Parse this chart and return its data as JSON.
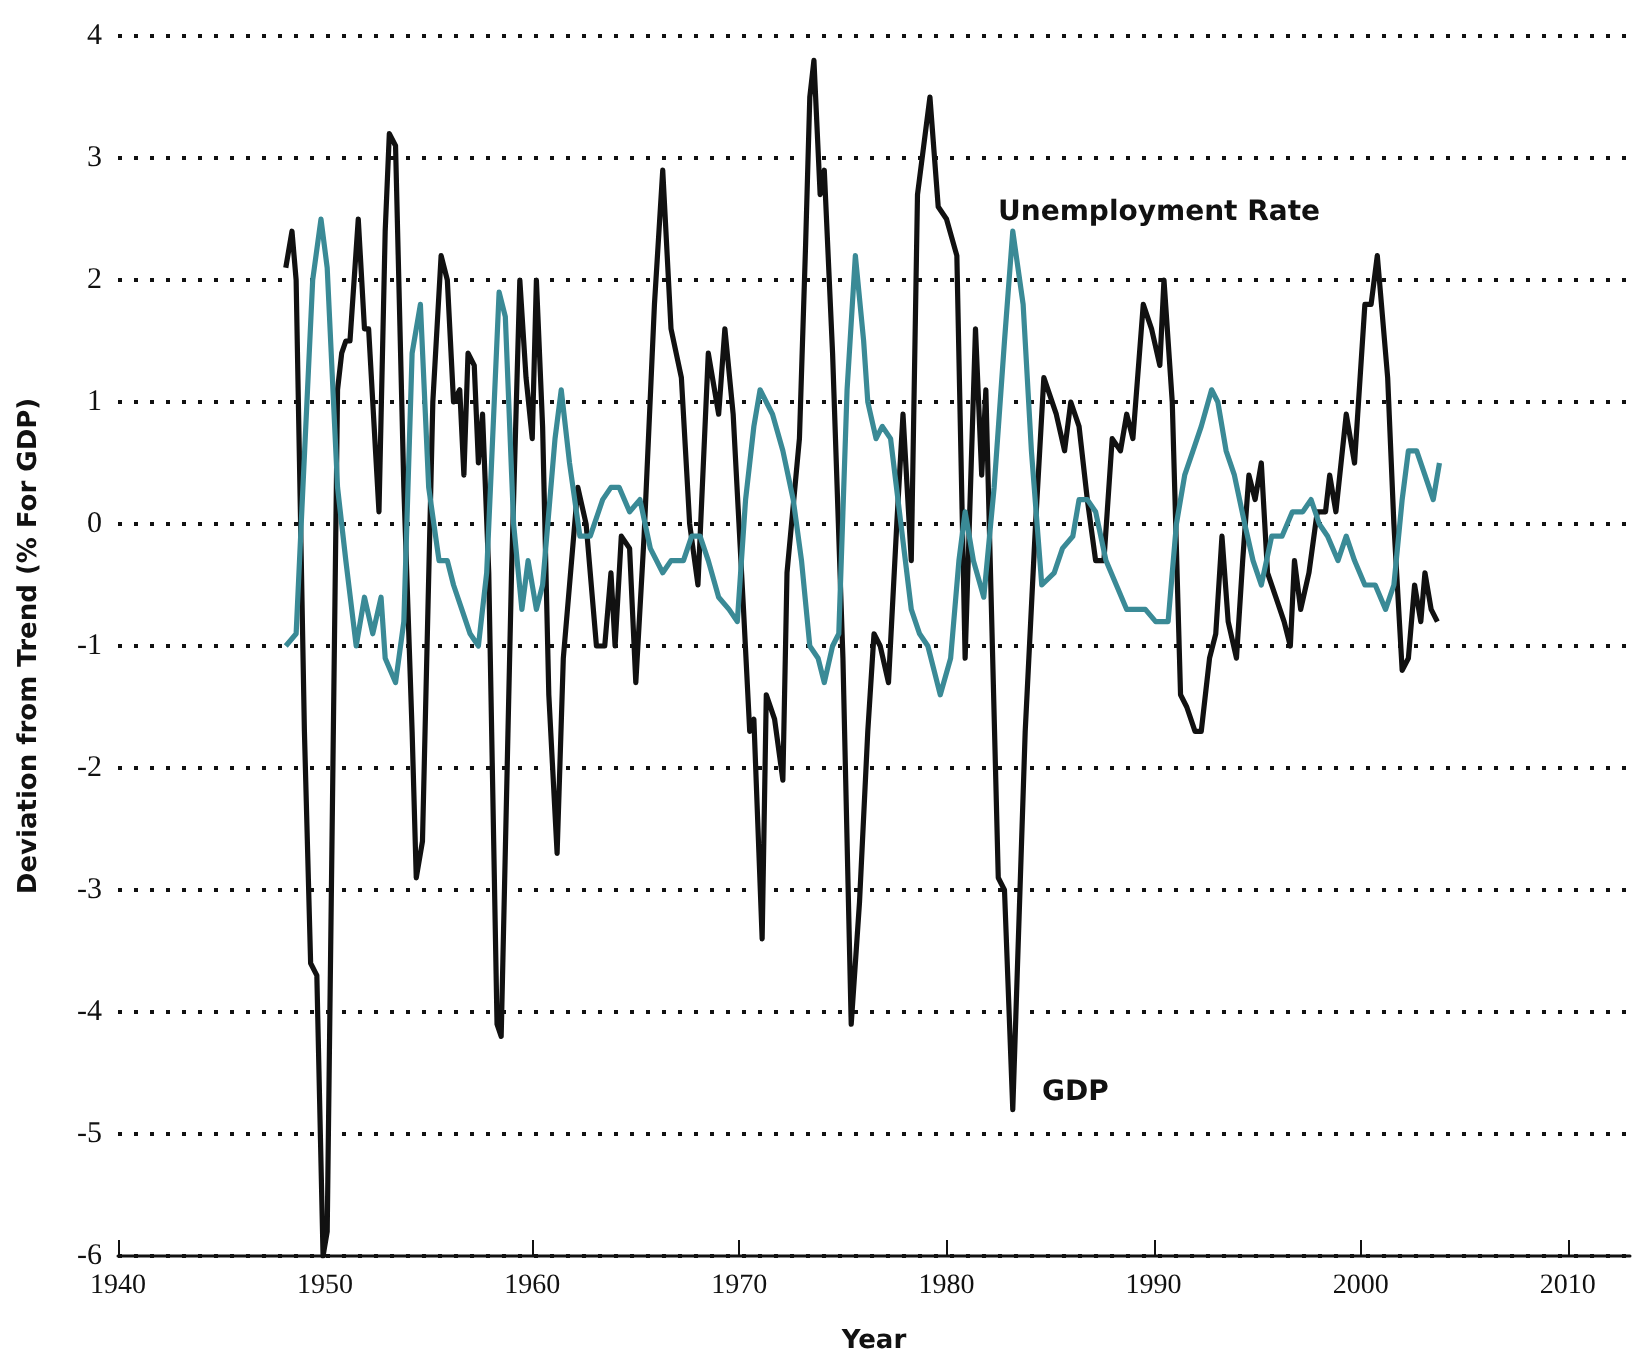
{
  "chart_data": {
    "type": "line",
    "xlabel": "Year",
    "ylabel": "Deviation from Trend (% For GDP)",
    "xlim": [
      1940,
      2013
    ],
    "xticks": [
      1940,
      1950,
      1960,
      1970,
      1980,
      1990,
      2000,
      2010
    ],
    "ylim": [
      -6,
      4
    ],
    "yticks": [
      -6,
      -5,
      -4,
      -3,
      -2,
      -1,
      0,
      1,
      2,
      3,
      4
    ],
    "grid": "y",
    "legend": false,
    "marker": "none",
    "line_style": "solid",
    "series": [
      {
        "name": "GDP",
        "color": "#111111",
        "x": [
          1948.1,
          1948.4,
          1948.6,
          1949.0,
          1949.3,
          1949.6,
          1949.9,
          1950.1,
          1950.6,
          1950.8,
          1951.0,
          1951.2,
          1951.6,
          1951.9,
          1952.1,
          1952.6,
          1952.9,
          1953.1,
          1953.4,
          1953.8,
          1954.2,
          1954.4,
          1954.7,
          1955.2,
          1955.6,
          1955.9,
          1956.2,
          1956.5,
          1956.7,
          1956.9,
          1957.2,
          1957.4,
          1957.6,
          1957.9,
          1958.3,
          1958.5,
          1959.0,
          1959.4,
          1959.7,
          1960.0,
          1960.2,
          1960.5,
          1960.8,
          1961.2,
          1961.5,
          1962.2,
          1962.6,
          1963.1,
          1963.5,
          1963.8,
          1964.0,
          1964.3,
          1964.7,
          1965.0,
          1965.4,
          1965.9,
          1966.3,
          1966.7,
          1967.2,
          1967.6,
          1968.0,
          1968.5,
          1969.0,
          1969.3,
          1969.7,
          1970.2,
          1970.5,
          1970.7,
          1971.1,
          1971.3,
          1971.7,
          1972.1,
          1972.3,
          1972.9,
          1973.2,
          1973.4,
          1973.6,
          1973.9,
          1974.1,
          1974.5,
          1975.0,
          1975.4,
          1975.8,
          1976.2,
          1976.5,
          1976.8,
          1977.2,
          1977.6,
          1977.9,
          1978.3,
          1978.6,
          1979.2,
          1979.6,
          1980.0,
          1980.5,
          1980.9,
          1981.4,
          1981.7,
          1981.9,
          1982.5,
          1982.8,
          1983.2,
          1983.8,
          1984.3,
          1984.7,
          1985.3,
          1985.7,
          1986.0,
          1986.4,
          1986.8,
          1987.2,
          1987.6,
          1988.0,
          1988.4,
          1988.7,
          1989.0,
          1989.5,
          1989.9,
          1990.3,
          1990.5,
          1990.9,
          1991.3,
          1991.6,
          1992.0,
          1992.3,
          1992.7,
          1993.0,
          1993.3,
          1993.6,
          1994.0,
          1994.3,
          1994.6,
          1994.9,
          1995.2,
          1995.5,
          1995.9,
          1996.3,
          1996.6,
          1996.8,
          1997.1,
          1997.5,
          1997.9,
          1998.3,
          1998.5,
          1998.8,
          1999.3,
          1999.7,
          2000.2,
          2000.5,
          2000.8,
          2001.0,
          2001.3,
          2001.6,
          2002.0,
          2002.3,
          2002.6,
          2002.9,
          2003.1,
          2003.4,
          2003.7
        ],
        "values": [
          2.1,
          2.4,
          2.0,
          -1.7,
          -3.6,
          -3.7,
          -6.0,
          -5.8,
          1.1,
          1.4,
          1.5,
          1.5,
          2.5,
          1.6,
          1.6,
          0.1,
          2.4,
          3.2,
          3.1,
          0.3,
          -1.7,
          -2.9,
          -2.6,
          1.0,
          2.2,
          2.0,
          1.0,
          1.1,
          0.4,
          1.4,
          1.3,
          0.5,
          0.9,
          -0.4,
          -4.1,
          -4.2,
          -0.4,
          2.0,
          1.2,
          0.7,
          2.0,
          0.8,
          -1.4,
          -2.7,
          -1.1,
          0.3,
          0.0,
          -1.0,
          -1.0,
          -0.4,
          -1.0,
          -0.1,
          -0.2,
          -1.3,
          -0.1,
          1.8,
          2.9,
          1.6,
          1.2,
          0.0,
          -0.5,
          1.4,
          0.9,
          1.6,
          0.9,
          -0.7,
          -1.7,
          -1.6,
          -3.4,
          -1.4,
          -1.6,
          -2.1,
          -0.4,
          0.7,
          2.3,
          3.5,
          3.8,
          2.7,
          2.9,
          1.4,
          -1.1,
          -4.1,
          -3.1,
          -1.7,
          -0.9,
          -1.0,
          -1.3,
          0.0,
          0.9,
          -0.3,
          2.7,
          3.5,
          2.6,
          2.5,
          2.2,
          -1.1,
          1.6,
          0.4,
          1.1,
          -2.9,
          -3.0,
          -4.8,
          -1.7,
          0.0,
          1.2,
          0.9,
          0.6,
          1.0,
          0.8,
          0.2,
          -0.3,
          -0.3,
          0.7,
          0.6,
          0.9,
          0.7,
          1.8,
          1.6,
          1.3,
          2.0,
          1.0,
          -1.4,
          -1.5,
          -1.7,
          -1.7,
          -1.1,
          -0.9,
          -0.1,
          -0.8,
          -1.1,
          -0.3,
          0.4,
          0.2,
          0.5,
          -0.4,
          -0.6,
          -0.8,
          -1.0,
          -0.3,
          -0.7,
          -0.4,
          0.1,
          0.1,
          0.4,
          0.1,
          0.9,
          0.5,
          1.8,
          1.8,
          2.2,
          1.8,
          1.2,
          0.0,
          -1.2,
          -1.1,
          -0.5,
          -0.8,
          -0.4,
          -0.7,
          -0.8
        ]
      },
      {
        "name": "Unemployment Rate",
        "color": "#3a8a96",
        "x": [
          1948.1,
          1948.6,
          1948.9,
          1949.4,
          1949.8,
          1950.1,
          1950.6,
          1951.0,
          1951.5,
          1951.9,
          1952.3,
          1952.7,
          1952.9,
          1953.4,
          1953.8,
          1954.2,
          1954.6,
          1955.0,
          1955.5,
          1955.9,
          1956.2,
          1956.6,
          1957.0,
          1957.4,
          1957.8,
          1958.4,
          1958.7,
          1959.1,
          1959.5,
          1959.8,
          1960.2,
          1960.5,
          1961.1,
          1961.4,
          1961.8,
          1962.3,
          1962.8,
          1963.4,
          1963.8,
          1964.2,
          1964.7,
          1965.2,
          1965.7,
          1966.3,
          1966.7,
          1967.3,
          1967.7,
          1968.1,
          1968.5,
          1969.0,
          1969.5,
          1969.9,
          1970.3,
          1970.7,
          1971.0,
          1971.3,
          1971.6,
          1972.1,
          1972.6,
          1973.0,
          1973.4,
          1973.8,
          1974.1,
          1974.5,
          1974.8,
          1975.2,
          1975.6,
          1976.0,
          1976.2,
          1976.6,
          1976.9,
          1977.3,
          1977.8,
          1978.3,
          1978.7,
          1979.1,
          1979.4,
          1979.7,
          1980.2,
          1980.6,
          1980.9,
          1981.3,
          1981.8,
          1982.3,
          1982.8,
          1983.2,
          1983.7,
          1984.1,
          1984.6,
          1985.2,
          1985.6,
          1986.1,
          1986.4,
          1986.8,
          1987.2,
          1987.7,
          1988.2,
          1988.7,
          1989.2,
          1989.6,
          1990.1,
          1990.7,
          1991.1,
          1991.5,
          1991.9,
          1992.3,
          1992.8,
          1993.1,
          1993.5,
          1993.9,
          1994.4,
          1994.8,
          1995.2,
          1995.7,
          1996.2,
          1996.7,
          1997.2,
          1997.6,
          1998.0,
          1998.4,
          1998.9,
          1999.3,
          1999.7,
          2000.2,
          2000.7,
          2001.2,
          2001.6,
          2002.0,
          2002.3,
          2002.7,
          2003.1,
          2003.5,
          2003.8
        ],
        "values": [
          -1.0,
          -0.9,
          0.2,
          2.0,
          2.5,
          2.1,
          0.3,
          -0.3,
          -1.0,
          -0.6,
          -0.9,
          -0.6,
          -1.1,
          -1.3,
          -0.8,
          1.4,
          1.8,
          0.3,
          -0.3,
          -0.3,
          -0.5,
          -0.7,
          -0.9,
          -1.0,
          -0.4,
          1.9,
          1.7,
          0.0,
          -0.7,
          -0.3,
          -0.7,
          -0.5,
          0.7,
          1.1,
          0.5,
          -0.1,
          -0.1,
          0.2,
          0.3,
          0.3,
          0.1,
          0.2,
          -0.2,
          -0.4,
          -0.3,
          -0.3,
          -0.1,
          -0.1,
          -0.3,
          -0.6,
          -0.7,
          -0.8,
          0.2,
          0.8,
          1.1,
          1.0,
          0.9,
          0.6,
          0.2,
          -0.3,
          -1.0,
          -1.1,
          -1.3,
          -1.0,
          -0.9,
          1.1,
          2.2,
          1.5,
          1.0,
          0.7,
          0.8,
          0.7,
          0.0,
          -0.7,
          -0.9,
          -1.0,
          -1.2,
          -1.4,
          -1.1,
          -0.3,
          0.1,
          -0.3,
          -0.6,
          0.3,
          1.5,
          2.4,
          1.8,
          0.6,
          -0.5,
          -0.4,
          -0.2,
          -0.1,
          0.2,
          0.2,
          0.1,
          -0.3,
          -0.5,
          -0.7,
          -0.7,
          -0.7,
          -0.8,
          -0.8,
          0.0,
          0.4,
          0.6,
          0.8,
          1.1,
          1.0,
          0.6,
          0.4,
          0.0,
          -0.3,
          -0.5,
          -0.1,
          -0.1,
          0.1,
          0.1,
          0.2,
          0.0,
          -0.1,
          -0.3,
          -0.1,
          -0.3,
          -0.5,
          -0.5,
          -0.7,
          -0.5,
          0.2,
          0.6,
          0.6,
          0.4,
          0.2,
          0.5
        ]
      }
    ]
  }
}
